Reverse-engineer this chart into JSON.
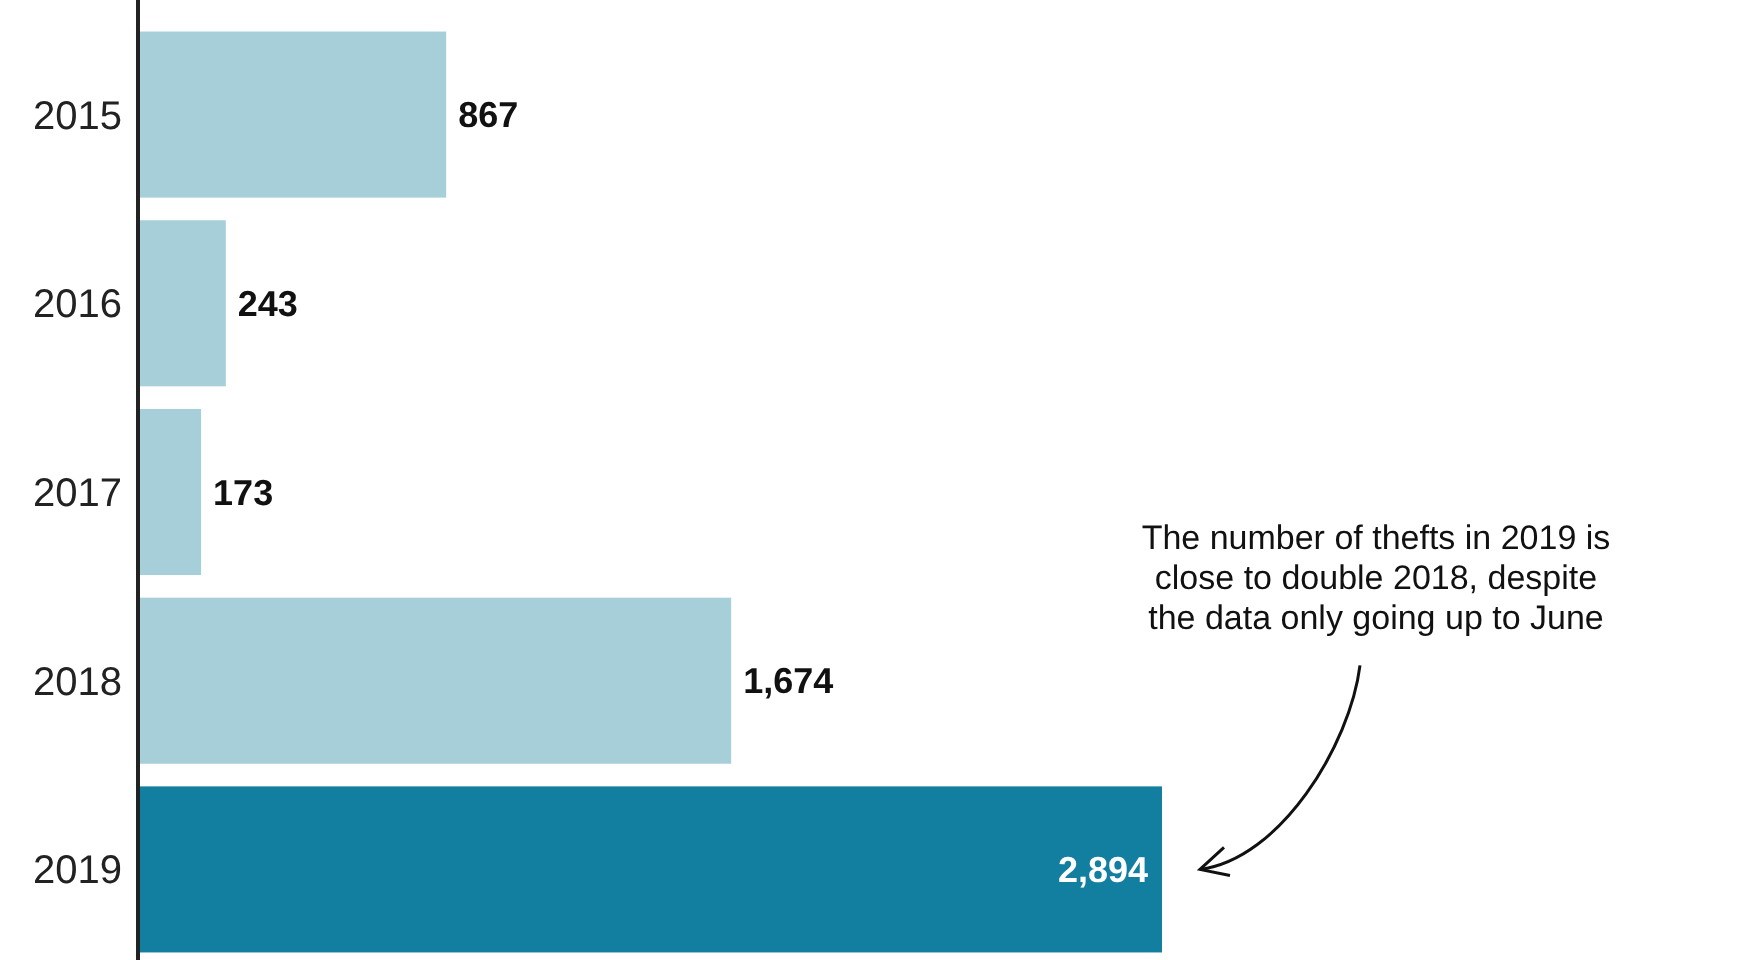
{
  "chart_data": {
    "type": "bar",
    "orientation": "horizontal",
    "categories": [
      "2015",
      "2016",
      "2017",
      "2018",
      "2019"
    ],
    "values": [
      867,
      243,
      173,
      1674,
      2894
    ],
    "colors": [
      "#a6cfda",
      "#a6cfda",
      "#a6cfda",
      "#a6cfda",
      "#137fa0"
    ],
    "value_labels": [
      "867",
      "243",
      "173",
      "1,674",
      "2,894"
    ],
    "annotations": [
      "The number of thefts in 2019 is close to double 2018, despite the data only going up to June"
    ]
  }
}
